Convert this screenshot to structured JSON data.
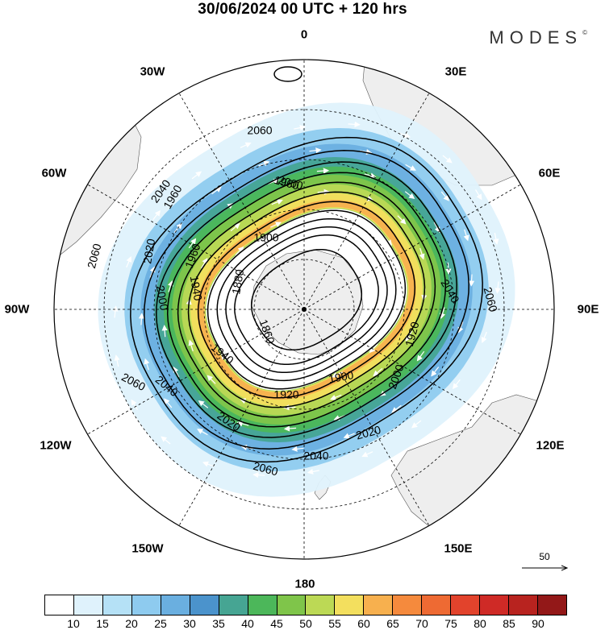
{
  "title": "30/06/2024  00 UTC  + 120 hrs",
  "brand": "MODES",
  "brand_mark": "©",
  "longitude_labels": {
    "0": "0",
    "30E": "30E",
    "60E": "60E",
    "90E": "90E",
    "120E": "120E",
    "150E": "150E",
    "180": "180",
    "150W": "150W",
    "120W": "120W",
    "90W": "90W",
    "60W": "60W",
    "30W": "30W"
  },
  "contour_labels": [
    "2060",
    "2040",
    "2020",
    "2000",
    "1960",
    "1940",
    "1920",
    "1900",
    "1880",
    "1860"
  ],
  "wind_reference": {
    "label": "50"
  },
  "colorbar": {
    "colors": [
      "#ffffff",
      "#dff2fc",
      "#b5e1f6",
      "#8ecbef",
      "#6aafe0",
      "#4b93cc",
      "#46a593",
      "#4cb75a",
      "#7fc54a",
      "#bcd955",
      "#f3df5e",
      "#f7b04e",
      "#f58a3d",
      "#ee6a33",
      "#e2432c",
      "#cf2a26",
      "#b8231f",
      "#931818"
    ],
    "ticks": [
      "10",
      "15",
      "20",
      "25",
      "30",
      "35",
      "40",
      "45",
      "50",
      "55",
      "60",
      "65",
      "70",
      "75",
      "80",
      "85",
      "90"
    ]
  },
  "map": {
    "background": "#ffffff",
    "land": "#eeeeee",
    "jet_bands": [
      {
        "level": 10,
        "color": "#dff2fc"
      },
      {
        "level": 20,
        "color": "#8ecbef"
      },
      {
        "level": 30,
        "color": "#6aafe0"
      },
      {
        "level": 40,
        "color": "#46a593"
      },
      {
        "level": 45,
        "color": "#4cb75a"
      },
      {
        "level": 50,
        "color": "#7fc54a"
      },
      {
        "level": 55,
        "color": "#bcd955"
      },
      {
        "level": 60,
        "color": "#f3df5e"
      },
      {
        "level": 65,
        "color": "#f7b04e"
      }
    ]
  }
}
